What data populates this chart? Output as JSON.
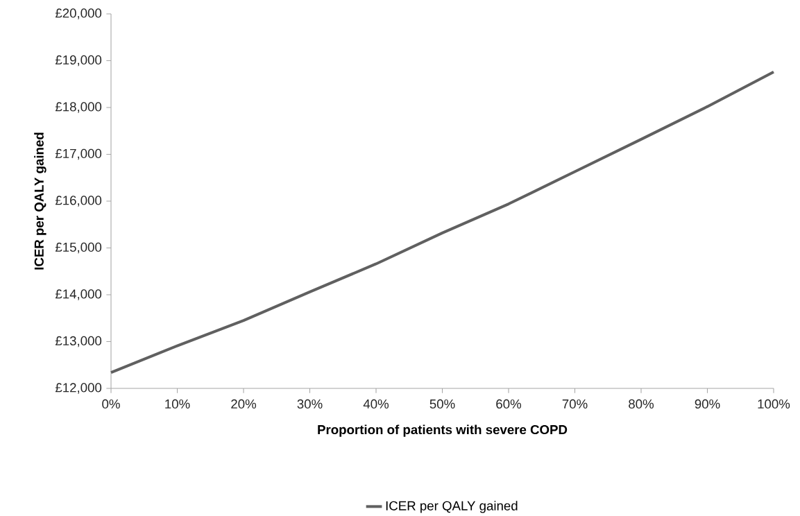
{
  "chart_data": {
    "type": "line",
    "xlabel": "**Proportion of patients with severe COPD**",
    "ylabel": "**ICER per QALY gained**",
    "x": [
      0,
      10,
      20,
      30,
      40,
      50,
      60,
      70,
      80,
      90,
      100
    ],
    "series": [
      {
        "name": "ICER per QALY gained",
        "color": "#606060",
        "values": [
          12340,
          12910,
          13450,
          14060,
          14660,
          15320,
          15940,
          16630,
          17320,
          18020,
          18760
        ]
      }
    ],
    "xlim": [
      0,
      100
    ],
    "xticks": [
      {
        "value": 0,
        "label": "0%"
      },
      {
        "value": 10,
        "label": "10%"
      },
      {
        "value": 20,
        "label": "20%"
      },
      {
        "value": 30,
        "label": "30%"
      },
      {
        "value": 40,
        "label": "40%"
      },
      {
        "value": 50,
        "label": "50%"
      },
      {
        "value": 60,
        "label": "60%"
      },
      {
        "value": 70,
        "label": "70%"
      },
      {
        "value": 80,
        "label": "80%"
      },
      {
        "value": 90,
        "label": "90%"
      },
      {
        "value": 100,
        "label": "100%"
      }
    ],
    "ylim": [
      12000,
      20000
    ],
    "yticks": [
      {
        "value": 12000,
        "label": "£12,000"
      },
      {
        "value": 13000,
        "label": "£13,000"
      },
      {
        "value": 14000,
        "label": "£14,000"
      },
      {
        "value": 15000,
        "label": "£15,000"
      },
      {
        "value": 16000,
        "label": "£16,000"
      },
      {
        "value": 17000,
        "label": "£17,000"
      },
      {
        "value": 18000,
        "label": "£18,000"
      },
      {
        "value": 19000,
        "label": "£19,000"
      },
      {
        "value": 20000,
        "label": "£20,000"
      }
    ],
    "grid": false,
    "legend": "bottom",
    "marker": "none",
    "line_style": "solid"
  }
}
